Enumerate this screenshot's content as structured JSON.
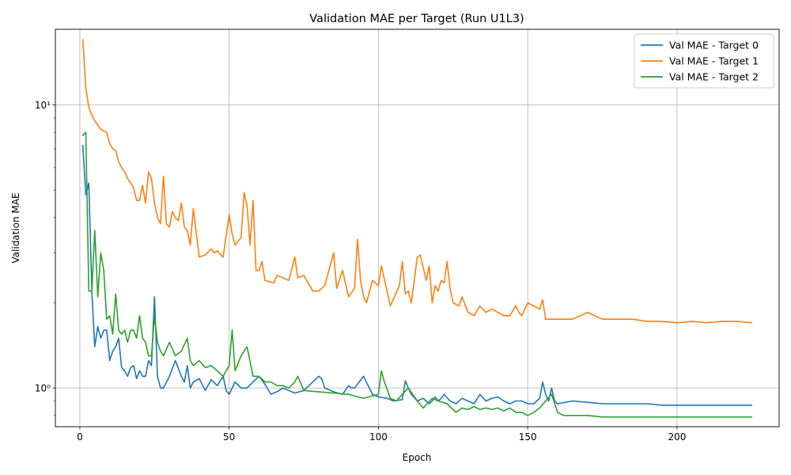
{
  "chart_data": {
    "type": "line",
    "title": "Validation MAE per Target (Run U1L3)",
    "xlabel": "Epoch",
    "ylabel": "Validation MAE",
    "xlim": [
      -8.2,
      234.2
    ],
    "ylim": [
      0.73,
      18.5
    ],
    "yscale": "log",
    "grid": true,
    "legend_position": "top-right",
    "xticks": [
      0,
      50,
      100,
      150,
      200
    ],
    "xtick_labels": [
      "0",
      "50",
      "100",
      "150",
      "200"
    ],
    "yticks": [
      1,
      10
    ],
    "ytick_labels": [
      "10⁰",
      "10¹"
    ],
    "series": [
      {
        "name": "Val MAE - Target 0",
        "color": "#1f77b4",
        "x": [
          1,
          2,
          3,
          4,
          5,
          6,
          7,
          8,
          9,
          10,
          11,
          12,
          13,
          14,
          15,
          16,
          17,
          18,
          19,
          20,
          21,
          22,
          23,
          24,
          25,
          26,
          27,
          28,
          30,
          32,
          34,
          35,
          36,
          37,
          38,
          40,
          42,
          44,
          46,
          48,
          49,
          50,
          52,
          54,
          56,
          58,
          60,
          62,
          64,
          66,
          68,
          70,
          72,
          75,
          80,
          81,
          82,
          85,
          88,
          90,
          91,
          92,
          95,
          98,
          100,
          103,
          105,
          108,
          109,
          110,
          111,
          113,
          115,
          117,
          118,
          119,
          120,
          121,
          122,
          124,
          126,
          128,
          130,
          132,
          134,
          136,
          138,
          140,
          142,
          144,
          146,
          148,
          150,
          152,
          154,
          155,
          156,
          157,
          158,
          159,
          160,
          165,
          170,
          175,
          180,
          185,
          190,
          195,
          200,
          205,
          210,
          215,
          220,
          225
        ],
        "y": [
          7.2,
          4.8,
          5.3,
          2.2,
          1.4,
          1.65,
          1.5,
          1.6,
          1.6,
          1.25,
          1.35,
          1.4,
          1.5,
          1.18,
          1.15,
          1.1,
          1.18,
          1.2,
          1.08,
          1.15,
          1.1,
          1.1,
          1.25,
          1.2,
          2.1,
          1.1,
          1.0,
          1.0,
          1.1,
          1.25,
          1.1,
          1.05,
          1.2,
          1.0,
          1.05,
          1.08,
          0.98,
          1.07,
          1.02,
          1.1,
          0.98,
          0.95,
          1.05,
          1.0,
          1.0,
          1.05,
          1.1,
          1.03,
          0.95,
          0.97,
          1.0,
          0.98,
          0.96,
          0.98,
          1.1,
          1.08,
          1.0,
          0.97,
          0.95,
          1.02,
          1.0,
          1.0,
          1.1,
          0.95,
          0.93,
          0.92,
          0.9,
          0.91,
          1.06,
          1.0,
          0.95,
          0.9,
          0.92,
          0.88,
          0.9,
          0.93,
          0.9,
          0.92,
          0.95,
          0.9,
          0.88,
          0.92,
          0.9,
          0.88,
          0.95,
          0.9,
          0.92,
          0.93,
          0.9,
          0.88,
          0.9,
          0.9,
          0.88,
          0.88,
          0.92,
          1.05,
          0.95,
          0.9,
          1.0,
          0.9,
          0.88,
          0.9,
          0.89,
          0.88,
          0.88,
          0.88,
          0.88,
          0.87,
          0.87,
          0.87,
          0.87,
          0.87,
          0.87,
          0.87
        ]
      },
      {
        "name": "Val MAE - Target 1",
        "color": "#ff7f0e",
        "x": [
          1,
          2,
          3,
          4,
          5,
          6,
          7,
          8,
          9,
          10,
          11,
          12,
          13,
          14,
          15,
          16,
          17,
          18,
          19,
          20,
          21,
          22,
          23,
          24,
          25,
          26,
          27,
          28,
          29,
          30,
          31,
          32,
          33,
          34,
          35,
          36,
          37,
          38,
          40,
          42,
          44,
          45,
          46,
          48,
          50,
          51,
          52,
          54,
          55,
          56,
          57,
          58,
          59,
          60,
          61,
          62,
          65,
          66,
          70,
          72,
          73,
          75,
          78,
          80,
          82,
          85,
          86,
          88,
          90,
          92,
          93,
          94,
          95,
          96,
          98,
          100,
          101,
          104,
          107,
          108,
          109,
          110,
          111,
          113,
          114,
          116,
          117,
          118,
          119,
          120,
          121,
          122,
          123,
          124,
          125,
          127,
          128,
          130,
          132,
          134,
          136,
          138,
          140,
          142,
          144,
          146,
          147,
          148,
          150,
          152,
          154,
          155,
          156,
          160,
          165,
          170,
          175,
          180,
          185,
          190,
          195,
          200,
          205,
          210,
          215,
          220,
          225
        ],
        "y": [
          17.0,
          11.5,
          9.8,
          9.2,
          8.8,
          8.5,
          8.2,
          8.1,
          8.0,
          7.3,
          7.0,
          6.9,
          6.3,
          6.0,
          5.8,
          5.5,
          5.3,
          5.1,
          4.6,
          4.6,
          5.2,
          4.5,
          5.8,
          5.5,
          4.5,
          4.0,
          3.8,
          5.6,
          3.8,
          3.7,
          4.2,
          4.0,
          3.9,
          4.5,
          3.7,
          3.6,
          3.2,
          4.3,
          2.9,
          2.95,
          3.1,
          3.0,
          3.05,
          2.9,
          4.1,
          3.5,
          3.2,
          3.4,
          4.9,
          4.4,
          3.2,
          4.6,
          2.6,
          2.6,
          2.8,
          2.4,
          2.35,
          2.5,
          2.4,
          2.9,
          2.45,
          2.5,
          2.2,
          2.2,
          2.3,
          3.0,
          2.25,
          2.6,
          2.1,
          2.25,
          3.35,
          2.4,
          2.1,
          2.0,
          2.4,
          2.3,
          2.7,
          1.95,
          2.3,
          2.8,
          2.15,
          2.2,
          2.0,
          2.9,
          2.95,
          2.4,
          2.7,
          2.0,
          2.3,
          2.2,
          2.4,
          2.35,
          2.8,
          2.25,
          2.0,
          1.95,
          2.1,
          1.85,
          1.8,
          1.95,
          1.85,
          1.9,
          1.85,
          1.8,
          1.8,
          1.95,
          1.85,
          1.8,
          2.0,
          1.95,
          1.9,
          2.05,
          1.75,
          1.75,
          1.75,
          1.85,
          1.75,
          1.75,
          1.75,
          1.72,
          1.72,
          1.7,
          1.72,
          1.7,
          1.72,
          1.72,
          1.7
        ]
      },
      {
        "name": "Val MAE - Target 2",
        "color": "#2ca02c",
        "x": [
          1,
          2,
          3,
          4,
          5,
          6,
          7,
          8,
          9,
          10,
          11,
          12,
          13,
          14,
          15,
          16,
          17,
          18,
          19,
          20,
          21,
          22,
          23,
          24,
          25,
          26,
          27,
          28,
          30,
          32,
          34,
          36,
          37,
          38,
          40,
          42,
          44,
          46,
          48,
          50,
          51,
          52,
          54,
          56,
          58,
          60,
          62,
          64,
          66,
          68,
          70,
          72,
          73,
          75,
          80,
          85,
          90,
          95,
          100,
          101,
          102,
          104,
          106,
          108,
          110,
          113,
          115,
          118,
          120,
          123,
          126,
          128,
          130,
          132,
          134,
          136,
          138,
          140,
          142,
          144,
          146,
          148,
          150,
          152,
          154,
          156,
          158,
          160,
          162,
          165,
          170,
          175,
          180,
          185,
          190,
          195,
          200,
          205,
          210,
          215,
          220,
          225
        ],
        "y": [
          7.8,
          8.0,
          2.2,
          2.2,
          3.6,
          2.1,
          3.0,
          2.6,
          1.75,
          1.8,
          1.55,
          2.15,
          1.6,
          1.55,
          1.6,
          1.45,
          1.6,
          1.6,
          1.5,
          1.8,
          1.5,
          1.45,
          1.3,
          1.3,
          1.8,
          1.45,
          1.35,
          1.3,
          1.45,
          1.3,
          1.35,
          1.5,
          1.25,
          1.2,
          1.25,
          1.18,
          1.2,
          1.15,
          1.1,
          1.2,
          1.6,
          1.15,
          1.3,
          1.4,
          1.1,
          1.1,
          1.05,
          1.05,
          1.02,
          1.02,
          1.0,
          1.05,
          1.1,
          0.98,
          0.97,
          0.96,
          0.95,
          0.92,
          0.95,
          1.15,
          1.05,
          0.92,
          0.9,
          0.95,
          1.0,
          0.9,
          0.85,
          0.92,
          0.9,
          0.88,
          0.82,
          0.85,
          0.84,
          0.86,
          0.84,
          0.85,
          0.84,
          0.85,
          0.83,
          0.85,
          0.82,
          0.82,
          0.8,
          0.82,
          0.85,
          0.9,
          0.95,
          0.82,
          0.8,
          0.8,
          0.8,
          0.79,
          0.79,
          0.79,
          0.79,
          0.79,
          0.79,
          0.79,
          0.79,
          0.79,
          0.79,
          0.79
        ]
      }
    ]
  }
}
